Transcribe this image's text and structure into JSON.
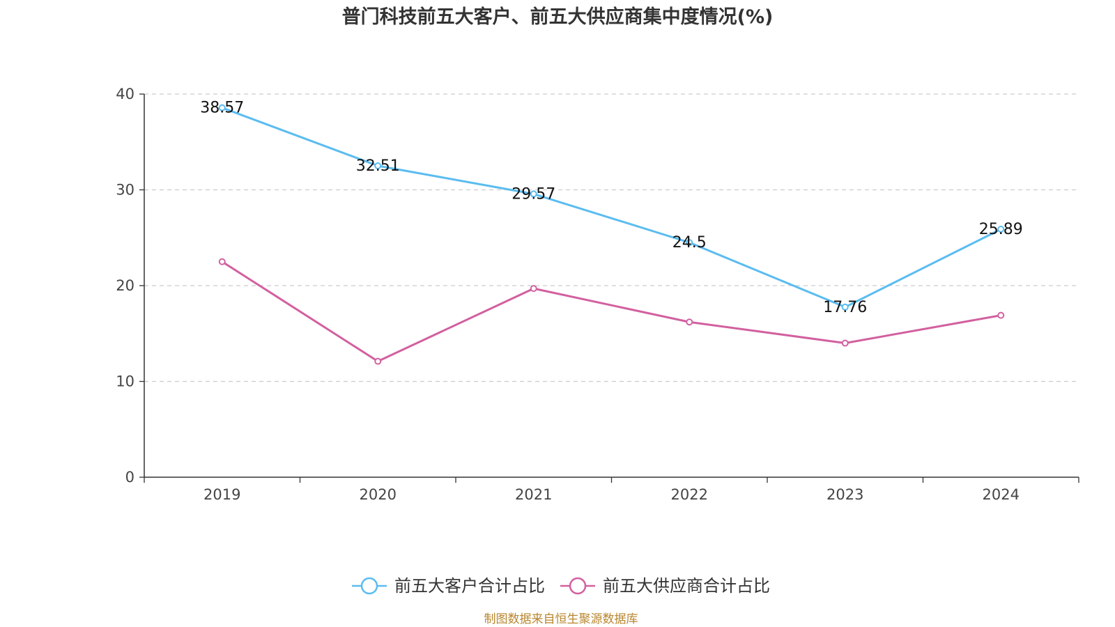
{
  "chart_data": {
    "type": "line",
    "title": "普门科技前五大客户、前五大供应商集中度情况(%)",
    "xlabel": "",
    "ylabel": "",
    "categories": [
      "2019",
      "2020",
      "2021",
      "2022",
      "2023",
      "2024"
    ],
    "ylim": [
      0,
      40
    ],
    "yticks": [
      0,
      10,
      20,
      30,
      40
    ],
    "grid": "horizontal-dashed",
    "legend_position": "bottom",
    "series": [
      {
        "name": "前五大客户合计占比",
        "color": "#5bbcf0",
        "values": [
          38.57,
          32.51,
          29.57,
          24.5,
          17.76,
          25.89
        ],
        "labels": [
          "38.57",
          "32.51",
          "29.57",
          "24.5",
          "17.76",
          "25.89"
        ]
      },
      {
        "name": "前五大供应商合计占比",
        "color": "#d2609f",
        "values": [
          22.5,
          12.1,
          19.7,
          16.2,
          14.0,
          16.9
        ],
        "labels": []
      }
    ]
  },
  "footer": {
    "source": "制图数据来自恒生聚源数据库"
  }
}
